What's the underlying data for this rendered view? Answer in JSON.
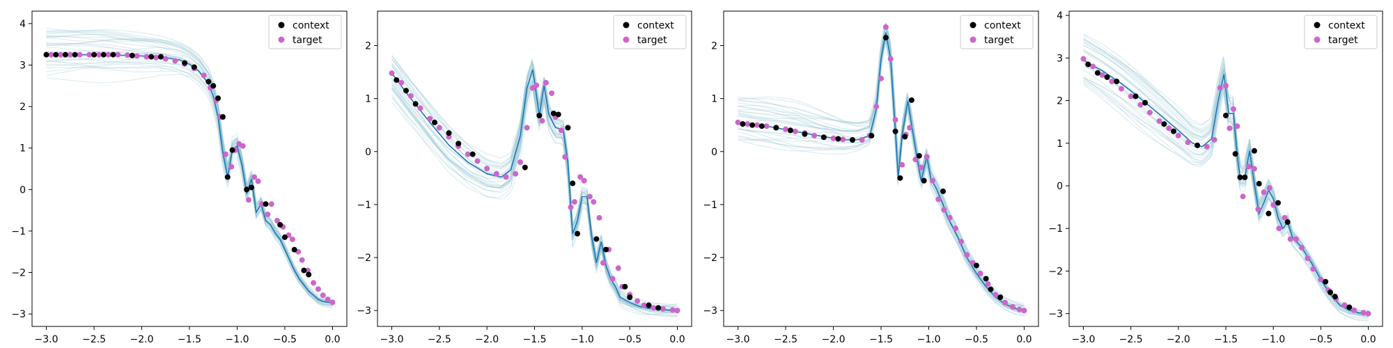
{
  "colors": {
    "context": "#000000",
    "target": "#cc66cc",
    "mean_line": "#1f77b4",
    "samples": "#8fc1cf",
    "background": "#ffffff"
  },
  "legend": {
    "placement": "top-right",
    "labels": [
      "context",
      "target"
    ]
  },
  "chart_data": [
    {
      "type": "scatter",
      "xlim": [
        -3.15,
        0.15
      ],
      "ylim": [
        -3.3,
        4.3
      ],
      "xticks": [
        -3.0,
        -2.5,
        -2.0,
        -1.5,
        -1.0,
        -0.5,
        0.0
      ],
      "xtick_labels": [
        "−3.0",
        "−2.5",
        "−2.0",
        "−1.5",
        "−1.0",
        "−0.5",
        "0.0"
      ],
      "yticks": [
        -3,
        -2,
        -1,
        0,
        1,
        2,
        3,
        4
      ],
      "ytick_labels": [
        "−3",
        "−2",
        "−1",
        "0",
        "1",
        "2",
        "3",
        "4"
      ],
      "legend": [
        "context",
        "target"
      ],
      "grid": false,
      "target_curve": {
        "x": [
          -3.0,
          -2.7,
          -2.4,
          -2.1,
          -1.8,
          -1.6,
          -1.5,
          -1.4,
          -1.3,
          -1.25,
          -1.2,
          -1.15,
          -1.1,
          -1.05,
          -1.0,
          -0.95,
          -0.9,
          -0.85,
          -0.8,
          -0.75,
          -0.7,
          -0.65,
          -0.6,
          -0.55,
          -0.5,
          -0.45,
          -0.4,
          -0.35,
          -0.3,
          -0.25,
          -0.2,
          -0.15,
          -0.1,
          -0.05,
          0.0
        ],
        "y": [
          3.25,
          3.25,
          3.25,
          3.23,
          3.2,
          3.12,
          3.02,
          2.85,
          2.55,
          2.25,
          1.75,
          0.9,
          0.3,
          0.95,
          1.05,
          0.6,
          -0.1,
          0.25,
          -0.55,
          -0.35,
          -0.75,
          -0.85,
          -1.05,
          -1.2,
          -1.45,
          -1.7,
          -1.95,
          -2.15,
          -2.3,
          -2.45,
          -2.55,
          -2.65,
          -2.7,
          -2.72,
          -2.73
        ]
      },
      "context": {
        "x": [
          -3.0,
          -2.9,
          -2.8,
          -2.7,
          -2.5,
          -2.4,
          -2.3,
          -2.1,
          -1.9,
          -1.8,
          -1.55,
          -1.45,
          -1.3,
          -1.25,
          -1.2,
          -1.15,
          -1.1,
          -1.05,
          -0.9,
          -0.85,
          -0.7,
          -0.55,
          -0.5,
          -0.4,
          -0.3,
          -0.25
        ],
        "y": [
          3.25,
          3.25,
          3.25,
          3.25,
          3.25,
          3.25,
          3.25,
          3.23,
          3.2,
          3.2,
          3.05,
          2.95,
          2.6,
          2.5,
          2.2,
          1.75,
          0.3,
          0.95,
          0.0,
          0.05,
          -0.35,
          -0.85,
          -1.15,
          -1.45,
          -1.95,
          -2.05
        ]
      },
      "targets": {
        "x": [
          -3.0,
          -2.95,
          -2.85,
          -2.75,
          -2.65,
          -2.55,
          -2.45,
          -2.35,
          -2.25,
          -2.15,
          -2.05,
          -1.95,
          -1.85,
          -1.75,
          -1.65,
          -1.55,
          -1.45,
          -1.35,
          -1.28,
          -1.22,
          -1.18,
          -1.12,
          -1.06,
          -1.02,
          -0.98,
          -0.94,
          -0.88,
          -0.82,
          -0.78,
          -0.74,
          -0.68,
          -0.64,
          -0.58,
          -0.52,
          -0.46,
          -0.42,
          -0.36,
          -0.32,
          -0.26,
          -0.2,
          -0.15,
          -0.1,
          -0.05,
          0.0
        ],
        "y": [
          3.25,
          3.25,
          3.25,
          3.25,
          3.25,
          3.25,
          3.25,
          3.25,
          3.25,
          3.24,
          3.22,
          3.2,
          3.18,
          3.15,
          3.1,
          3.03,
          2.92,
          2.75,
          2.45,
          2.15,
          1.75,
          0.85,
          0.55,
          0.95,
          1.1,
          1.05,
          -0.25,
          0.3,
          0.2,
          -0.35,
          -0.6,
          -0.35,
          -0.75,
          -0.9,
          -1.1,
          -1.2,
          -1.5,
          -1.7,
          -1.95,
          -2.25,
          -2.4,
          -2.55,
          -2.65,
          -2.72
        ]
      }
    },
    {
      "type": "scatter",
      "xlim": [
        -3.15,
        0.15
      ],
      "ylim": [
        -3.3,
        2.65
      ],
      "xticks": [
        -3.0,
        -2.5,
        -2.0,
        -1.5,
        -1.0,
        -0.5,
        0.0
      ],
      "xtick_labels": [
        "−3.0",
        "−2.5",
        "−2.0",
        "−1.5",
        "−1.0",
        "−0.5",
        "0.0"
      ],
      "yticks": [
        -3,
        -2,
        -1,
        0,
        1,
        2
      ],
      "ytick_labels": [
        "−3",
        "−2",
        "−1",
        "0",
        "1",
        "2"
      ],
      "legend": [
        "context",
        "target"
      ],
      "grid": false,
      "target_curve": {
        "x": [
          -3.0,
          -2.8,
          -2.6,
          -2.4,
          -2.2,
          -2.0,
          -1.85,
          -1.75,
          -1.65,
          -1.58,
          -1.52,
          -1.45,
          -1.4,
          -1.35,
          -1.28,
          -1.2,
          -1.15,
          -1.1,
          -1.05,
          -1.0,
          -0.95,
          -0.9,
          -0.85,
          -0.8,
          -0.75,
          -0.7,
          -0.65,
          -0.6,
          -0.5,
          -0.4,
          -0.3,
          -0.2,
          -0.1,
          0.0
        ],
        "y": [
          1.48,
          1.0,
          0.55,
          0.12,
          -0.2,
          -0.42,
          -0.48,
          -0.35,
          0.3,
          1.2,
          1.55,
          0.68,
          1.25,
          0.7,
          0.45,
          0.42,
          -0.2,
          -1.55,
          -1.3,
          -0.85,
          -0.85,
          -1.6,
          -2.1,
          -1.7,
          -2.15,
          -2.4,
          -2.55,
          -2.75,
          -2.85,
          -2.92,
          -2.96,
          -2.98,
          -2.99,
          -3.0
        ]
      },
      "context": {
        "x": [
          -2.95,
          -2.85,
          -2.75,
          -2.55,
          -2.4,
          -2.3,
          -2.15,
          -1.6,
          -1.45,
          -1.3,
          -1.25,
          -1.15,
          -1.1,
          -1.05,
          -0.85,
          -0.75,
          -0.55,
          -0.5,
          -0.3,
          -0.2
        ],
        "y": [
          1.35,
          1.15,
          0.9,
          0.55,
          0.35,
          0.15,
          -0.05,
          -0.3,
          0.68,
          0.72,
          0.7,
          0.45,
          -0.6,
          -1.55,
          -1.65,
          -1.85,
          -2.55,
          -2.75,
          -2.9,
          -2.95
        ]
      },
      "targets": {
        "x": [
          -3.0,
          -2.9,
          -2.8,
          -2.7,
          -2.6,
          -2.5,
          -2.4,
          -2.3,
          -2.2,
          -2.1,
          -2.0,
          -1.9,
          -1.8,
          -1.7,
          -1.65,
          -1.58,
          -1.52,
          -1.48,
          -1.42,
          -1.38,
          -1.32,
          -1.28,
          -1.22,
          -1.18,
          -1.12,
          -1.08,
          -1.02,
          -0.98,
          -0.92,
          -0.88,
          -0.82,
          -0.78,
          -0.72,
          -0.68,
          -0.62,
          -0.58,
          -0.5,
          -0.42,
          -0.35,
          -0.25,
          -0.15,
          -0.05,
          0.0
        ],
        "y": [
          1.48,
          1.3,
          1.05,
          0.82,
          0.62,
          0.45,
          0.28,
          0.1,
          -0.05,
          -0.18,
          -0.32,
          -0.42,
          -0.48,
          -0.42,
          -0.2,
          0.45,
          1.2,
          1.25,
          0.58,
          1.3,
          1.1,
          0.65,
          0.4,
          -0.1,
          -1.05,
          -0.95,
          -0.48,
          -0.55,
          -0.85,
          -0.95,
          -1.25,
          -2.1,
          -1.85,
          -2.4,
          -2.2,
          -2.55,
          -2.7,
          -2.82,
          -2.9,
          -2.95,
          -2.97,
          -2.99,
          -3.0
        ]
      }
    },
    {
      "type": "scatter",
      "xlim": [
        -3.15,
        0.15
      ],
      "ylim": [
        -3.3,
        2.65
      ],
      "xticks": [
        -3.0,
        -2.5,
        -2.0,
        -1.5,
        -1.0,
        -0.5,
        0.0
      ],
      "xtick_labels": [
        "−3.0",
        "−2.5",
        "−2.0",
        "−1.5",
        "−1.0",
        "−0.5",
        "0.0"
      ],
      "yticks": [
        -3,
        -2,
        -1,
        0,
        1,
        2
      ],
      "ytick_labels": [
        "−3",
        "−2",
        "−1",
        "0",
        "1",
        "2"
      ],
      "legend": [
        "context",
        "target"
      ],
      "grid": false,
      "target_curve": {
        "x": [
          -3.0,
          -2.7,
          -2.4,
          -2.1,
          -1.9,
          -1.75,
          -1.62,
          -1.55,
          -1.5,
          -1.45,
          -1.4,
          -1.35,
          -1.32,
          -1.28,
          -1.22,
          -1.18,
          -1.12,
          -1.08,
          -1.02,
          -0.98,
          -0.92,
          -0.85,
          -0.8,
          -0.7,
          -0.6,
          -0.5,
          -0.4,
          -0.3,
          -0.2,
          -0.1,
          0.0
        ],
        "y": [
          0.55,
          0.48,
          0.38,
          0.28,
          0.22,
          0.22,
          0.3,
          0.8,
          1.75,
          2.25,
          1.75,
          0.4,
          -0.5,
          0.3,
          0.95,
          0.5,
          -0.15,
          -0.55,
          -0.1,
          -0.5,
          -0.7,
          -1.0,
          -1.25,
          -1.6,
          -2.0,
          -2.3,
          -2.55,
          -2.75,
          -2.88,
          -2.96,
          -3.0
        ]
      },
      "context": {
        "x": [
          -2.95,
          -2.85,
          -2.75,
          -2.6,
          -2.45,
          -2.3,
          -2.1,
          -1.95,
          -1.8,
          -1.6,
          -1.45,
          -1.35,
          -1.3,
          -1.25,
          -1.18,
          -1.1,
          -1.05,
          -0.85,
          -0.5,
          -0.4,
          -0.35,
          -0.25
        ],
        "y": [
          0.52,
          0.5,
          0.48,
          0.45,
          0.4,
          0.33,
          0.27,
          0.24,
          0.22,
          0.3,
          2.15,
          0.38,
          -0.5,
          0.28,
          0.97,
          -0.08,
          -0.55,
          -0.75,
          -2.15,
          -2.4,
          -2.6,
          -2.75
        ]
      },
      "targets": {
        "x": [
          -3.0,
          -2.9,
          -2.8,
          -2.7,
          -2.6,
          -2.5,
          -2.4,
          -2.3,
          -2.2,
          -2.1,
          -2.0,
          -1.9,
          -1.8,
          -1.7,
          -1.62,
          -1.55,
          -1.5,
          -1.45,
          -1.4,
          -1.35,
          -1.28,
          -1.24,
          -1.2,
          -1.14,
          -1.08,
          -1.02,
          -0.96,
          -0.9,
          -0.84,
          -0.78,
          -0.72,
          -0.66,
          -0.6,
          -0.54,
          -0.46,
          -0.38,
          -0.3,
          -0.2,
          -0.12,
          -0.05,
          0.0
        ],
        "y": [
          0.55,
          0.52,
          0.5,
          0.48,
          0.45,
          0.42,
          0.38,
          0.35,
          0.3,
          0.27,
          0.25,
          0.23,
          0.22,
          0.22,
          0.3,
          0.85,
          1.38,
          2.35,
          1.75,
          0.6,
          -0.25,
          0.32,
          0.45,
          -0.15,
          -0.3,
          -0.1,
          -0.55,
          -0.9,
          -1.1,
          -1.25,
          -1.45,
          -1.7,
          -1.95,
          -2.1,
          -2.3,
          -2.5,
          -2.7,
          -2.85,
          -2.93,
          -2.98,
          -3.0
        ]
      }
    },
    {
      "type": "scatter",
      "xlim": [
        -3.15,
        0.15
      ],
      "ylim": [
        -3.3,
        4.1
      ],
      "xticks": [
        -3.0,
        -2.5,
        -2.0,
        -1.5,
        -1.0,
        -0.5,
        0.0
      ],
      "xtick_labels": [
        "−3.0",
        "−2.5",
        "−2.0",
        "−1.5",
        "−1.0",
        "−0.5",
        "0.0"
      ],
      "yticks": [
        -3,
        -2,
        -1,
        0,
        1,
        2,
        3,
        4
      ],
      "ytick_labels": [
        "−3",
        "−2",
        "−1",
        "0",
        "1",
        "2",
        "3",
        "4"
      ],
      "legend": [
        "context",
        "target"
      ],
      "grid": false,
      "target_curve": {
        "x": [
          -3.0,
          -2.8,
          -2.6,
          -2.4,
          -2.2,
          -2.0,
          -1.85,
          -1.75,
          -1.65,
          -1.58,
          -1.52,
          -1.47,
          -1.42,
          -1.38,
          -1.35,
          -1.3,
          -1.25,
          -1.2,
          -1.15,
          -1.1,
          -1.05,
          -1.0,
          -0.95,
          -0.9,
          -0.85,
          -0.8,
          -0.7,
          -0.6,
          -0.5,
          -0.4,
          -0.3,
          -0.2,
          -0.1,
          0.0
        ],
        "y": [
          2.95,
          2.7,
          2.4,
          2.05,
          1.68,
          1.3,
          1.0,
          0.92,
          1.1,
          2.0,
          2.62,
          1.7,
          1.7,
          0.7,
          0.2,
          0.2,
          0.82,
          0.05,
          -0.65,
          -0.4,
          -0.1,
          -0.3,
          -0.75,
          -1.0,
          -0.85,
          -1.2,
          -1.45,
          -1.8,
          -2.2,
          -2.55,
          -2.8,
          -2.92,
          -2.98,
          -3.0
        ]
      },
      "context": {
        "x": [
          -2.95,
          -2.85,
          -2.75,
          -2.65,
          -2.45,
          -2.35,
          -2.15,
          -2.05,
          -1.8,
          -1.5,
          -1.4,
          -1.35,
          -1.3,
          -1.2,
          -1.15,
          -1.05,
          -0.95,
          -0.85,
          -0.45,
          -0.4,
          -0.35,
          -0.2
        ],
        "y": [
          2.85,
          2.65,
          2.55,
          2.45,
          2.1,
          1.95,
          1.45,
          1.28,
          0.95,
          1.65,
          0.75,
          0.2,
          0.2,
          0.82,
          0.05,
          -0.65,
          -0.4,
          -0.85,
          -2.25,
          -2.5,
          -2.6,
          -2.85
        ]
      },
      "targets": {
        "x": [
          -3.0,
          -2.9,
          -2.8,
          -2.7,
          -2.6,
          -2.5,
          -2.4,
          -2.3,
          -2.2,
          -2.1,
          -2.0,
          -1.9,
          -1.8,
          -1.7,
          -1.62,
          -1.56,
          -1.5,
          -1.46,
          -1.42,
          -1.38,
          -1.32,
          -1.26,
          -1.2,
          -1.16,
          -1.1,
          -1.04,
          -1.0,
          -0.94,
          -0.88,
          -0.82,
          -0.76,
          -0.7,
          -0.64,
          -0.58,
          -0.5,
          -0.42,
          -0.34,
          -0.25,
          -0.15,
          -0.05,
          0.0
        ],
        "y": [
          2.98,
          2.8,
          2.6,
          2.45,
          2.28,
          2.1,
          1.9,
          1.72,
          1.52,
          1.35,
          1.18,
          1.02,
          0.95,
          0.92,
          1.08,
          2.3,
          2.35,
          1.35,
          1.8,
          1.4,
          -0.25,
          0.45,
          0.4,
          -0.55,
          -0.15,
          -0.05,
          -0.45,
          -1.0,
          -0.75,
          -1.25,
          -1.25,
          -1.45,
          -1.7,
          -1.95,
          -2.2,
          -2.45,
          -2.65,
          -2.8,
          -2.92,
          -2.98,
          -3.0
        ]
      }
    }
  ]
}
